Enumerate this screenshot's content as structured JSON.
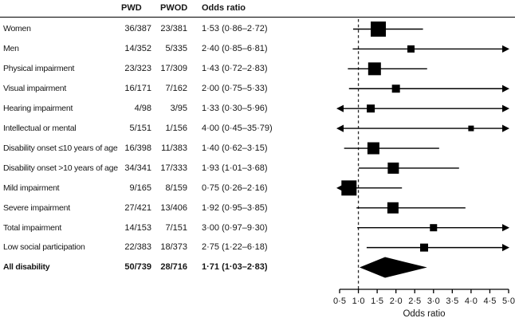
{
  "chart_data": {
    "type": "forest",
    "title": "",
    "xlabel": "Odds ratio",
    "columns": [
      "PWD",
      "PWOD",
      "Odds ratio"
    ],
    "axis": {
      "min": 0.5,
      "max": 5.0,
      "step": 0.5,
      "reference_line": 1.0,
      "tick_labels": [
        "0·5",
        "1·0",
        "1·5",
        "2·0",
        "2·5",
        "3·0",
        "3·5",
        "4·0",
        "4·5",
        "5·0"
      ]
    },
    "colors": {
      "marker": "#000000",
      "ci_line": "#000000",
      "reference_dash": "#2b2b2b",
      "axis": "#000000"
    },
    "rows": [
      {
        "label": "Women",
        "pwd": "36/387",
        "pwod": "23/381",
        "odds_ratio_text": "1·53 (0·86–2·72)",
        "or": 1.53,
        "ci_low": 0.86,
        "ci_high": 2.72,
        "marker_size": 19,
        "bold": false,
        "summary": false
      },
      {
        "label": "Men",
        "pwd": "14/352",
        "pwod": "5/335",
        "odds_ratio_text": "2·40 (0·85–6·81)",
        "or": 2.4,
        "ci_low": 0.85,
        "ci_high": 6.81,
        "marker_size": 9,
        "bold": false,
        "summary": false
      },
      {
        "label": "Physical impairment",
        "pwd": "23/323",
        "pwod": "17/309",
        "odds_ratio_text": "1·43 (0·72–2·83)",
        "or": 1.43,
        "ci_low": 0.72,
        "ci_high": 2.83,
        "marker_size": 16,
        "bold": false,
        "summary": false
      },
      {
        "label": "Visual impairment",
        "pwd": "16/171",
        "pwod": "7/162",
        "odds_ratio_text": "2·00 (0·75–5·33)",
        "or": 2.0,
        "ci_low": 0.75,
        "ci_high": 5.33,
        "marker_size": 10,
        "bold": false,
        "summary": false
      },
      {
        "label": "Hearing impairment",
        "pwd": "4/98",
        "pwod": "3/95",
        "odds_ratio_text": "1·33 (0·30–5·96)",
        "or": 1.33,
        "ci_low": 0.3,
        "ci_high": 5.96,
        "marker_size": 10,
        "bold": false,
        "summary": false
      },
      {
        "label": "Intellectual or mental",
        "pwd": "5/151",
        "pwod": "1/156",
        "odds_ratio_text": "4·00 (0·45–35·79)",
        "or": 4.0,
        "ci_low": 0.45,
        "ci_high": 35.79,
        "marker_size": 7,
        "bold": false,
        "summary": false
      },
      {
        "label": "Disability onset ≤10 years of age",
        "pwd": "16/398",
        "pwod": "11/383",
        "odds_ratio_text": "1·40 (0·62–3·15)",
        "or": 1.4,
        "ci_low": 0.62,
        "ci_high": 3.15,
        "marker_size": 15,
        "bold": false,
        "summary": false
      },
      {
        "label": "Disability onset >10 years of age",
        "pwd": "34/341",
        "pwod": "17/333",
        "odds_ratio_text": "1·93 (1·01–3·68)",
        "or": 1.93,
        "ci_low": 1.01,
        "ci_high": 3.68,
        "marker_size": 14,
        "bold": false,
        "summary": false
      },
      {
        "label": "Mild impairment",
        "pwd": "9/165",
        "pwod": "8/159",
        "odds_ratio_text": "0·75 (0·26–2·16)",
        "or": 0.75,
        "ci_low": 0.26,
        "ci_high": 2.16,
        "marker_size": 19,
        "bold": false,
        "summary": false
      },
      {
        "label": "Severe impairment",
        "pwd": "27/421",
        "pwod": "13/406",
        "odds_ratio_text": "1·92 (0·95–3·85)",
        "or": 1.92,
        "ci_low": 0.95,
        "ci_high": 3.85,
        "marker_size": 14,
        "bold": false,
        "summary": false
      },
      {
        "label": "Total impairment",
        "pwd": "14/153",
        "pwod": "7/151",
        "odds_ratio_text": "3·00 (0·97–9·30)",
        "or": 3.0,
        "ci_low": 0.97,
        "ci_high": 9.3,
        "marker_size": 9,
        "bold": false,
        "summary": false
      },
      {
        "label": "Low social participation",
        "pwd": "22/383",
        "pwod": "18/373",
        "odds_ratio_text": "2·75 (1·22–6·18)",
        "or": 2.75,
        "ci_low": 1.22,
        "ci_high": 6.18,
        "marker_size": 10,
        "bold": false,
        "summary": false
      },
      {
        "label": "All disability",
        "pwd": "50/739",
        "pwod": "28/716",
        "odds_ratio_text": "1·71 (1·03–2·83)",
        "or": 1.71,
        "ci_low": 1.03,
        "ci_high": 2.83,
        "marker_size": 0,
        "bold": true,
        "summary": true
      }
    ]
  }
}
